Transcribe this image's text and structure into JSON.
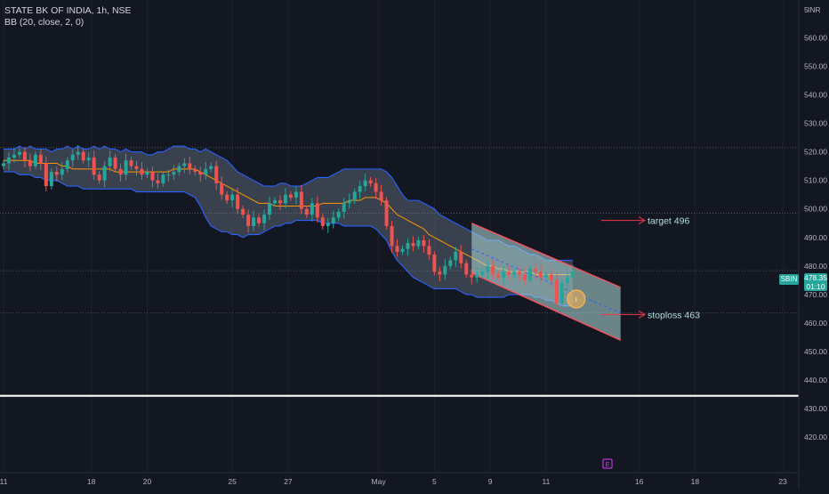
{
  "header": {
    "title": "STATE BK OF INDIA, 1h, NSE",
    "indicator": "BB (20, close, 2, 0)"
  },
  "currency": "INR",
  "last_price": {
    "symbol": "SBIN",
    "price": "478.35",
    "countdown": "01:10",
    "value": 478.35
  },
  "annotations": {
    "target_label": "target 496",
    "stoploss_label": "stoploss 463",
    "earnings_marker": "E",
    "point_marker": "I"
  },
  "colors": {
    "background": "#131722",
    "up": "#26a69a",
    "down": "#ef5350",
    "bands": "#2962ff",
    "basis": "#ff9800",
    "channel": "#b2dfdb",
    "target_arrow": "#f23645"
  },
  "chart_data": {
    "type": "candlestick",
    "title": "STATE BK OF INDIA, 1h, NSE",
    "indicator": "Bollinger Bands (20, close, 2, 0)",
    "ylim": [
      411,
      567
    ],
    "y_ticks": [
      420,
      430,
      440,
      450,
      460,
      470,
      480,
      490,
      500,
      510,
      520,
      530,
      540,
      550,
      560
    ],
    "x_ticks": [
      "11",
      "18",
      "20",
      "25",
      "27",
      "May",
      "5",
      "9",
      "11",
      "16",
      "18",
      "23"
    ],
    "close": [
      516,
      518,
      519,
      520,
      517,
      515,
      519,
      516,
      508,
      513,
      512,
      514,
      517,
      519,
      520,
      517,
      518,
      512,
      510,
      515,
      518,
      514,
      512,
      517,
      515,
      514,
      512,
      513,
      510,
      509,
      512,
      512,
      513,
      515,
      516,
      514,
      513,
      512,
      514,
      515,
      509,
      505,
      503,
      505,
      500,
      498,
      494,
      497,
      495,
      498,
      502,
      503,
      502,
      505,
      504,
      506,
      500,
      498,
      502,
      497,
      494,
      495,
      497,
      499,
      502,
      503,
      506,
      508,
      510,
      509,
      506,
      503,
      494,
      487,
      485,
      486,
      488,
      487,
      489,
      487,
      484,
      478,
      477,
      480,
      482,
      485,
      481,
      477,
      476,
      477,
      478,
      480,
      477,
      476,
      478,
      477,
      478,
      477,
      475,
      479,
      478,
      476,
      477,
      475,
      467,
      474,
      476,
      478
    ],
    "bb_upper": [
      521,
      521,
      521,
      522,
      521,
      522,
      521,
      521,
      521,
      520,
      521,
      521,
      522,
      521,
      522,
      521,
      521,
      522,
      521,
      522,
      521,
      521,
      520,
      521,
      520,
      520,
      520,
      519,
      519,
      520,
      520,
      521,
      522,
      522,
      522,
      521,
      521,
      520,
      521,
      520,
      519,
      518,
      517,
      515,
      513,
      512,
      511,
      510,
      509,
      508,
      508,
      508,
      509,
      509,
      508,
      508,
      508,
      509,
      510,
      511,
      511,
      511,
      512,
      513,
      514,
      514,
      514,
      514,
      514,
      514,
      514,
      514,
      513,
      511,
      508,
      505,
      503,
      503,
      503,
      502,
      501,
      500,
      498,
      497,
      496,
      495,
      494,
      493,
      492,
      491,
      490,
      489,
      489,
      489,
      488,
      487,
      487,
      486,
      485,
      484,
      484,
      483,
      482,
      482,
      482,
      482,
      482,
      482
    ],
    "bb_basis": [
      517,
      517,
      517,
      517,
      517,
      517,
      516,
      516,
      516,
      516,
      516,
      515,
      515,
      514,
      514,
      514,
      514,
      514,
      514,
      514,
      514,
      513,
      513,
      513,
      513,
      513,
      513,
      513,
      513,
      513,
      513,
      513,
      514,
      514,
      514,
      514,
      514,
      513,
      512,
      511,
      510,
      509,
      508,
      507,
      506,
      505,
      504,
      503,
      502,
      502,
      502,
      501,
      501,
      501,
      501,
      501,
      501,
      501,
      501,
      501,
      502,
      502,
      502,
      502,
      502,
      503,
      503,
      503,
      504,
      504,
      504,
      503,
      502,
      500,
      498,
      497,
      496,
      495,
      494,
      493,
      491,
      490,
      489,
      488,
      487,
      486,
      485,
      484,
      483,
      482,
      481,
      480,
      480,
      479,
      479,
      478,
      478,
      478,
      478,
      478,
      477,
      477,
      477,
      477,
      477,
      477,
      477,
      477
    ],
    "bb_lower": [
      513,
      513,
      513,
      512,
      512,
      512,
      511,
      511,
      510,
      510,
      510,
      509,
      508,
      508,
      508,
      507,
      507,
      507,
      507,
      507,
      507,
      507,
      507,
      507,
      507,
      506,
      506,
      506,
      506,
      506,
      506,
      506,
      506,
      506,
      506,
      505,
      504,
      501,
      497,
      494,
      493,
      492,
      492,
      491,
      491,
      490,
      491,
      491,
      491,
      492,
      493,
      494,
      494,
      495,
      495,
      496,
      496,
      496,
      496,
      496,
      495,
      495,
      495,
      495,
      494,
      494,
      494,
      494,
      494,
      494,
      493,
      491,
      489,
      485,
      482,
      480,
      478,
      476,
      475,
      474,
      473,
      472,
      472,
      472,
      472,
      472,
      471,
      470,
      470,
      469,
      469,
      469,
      469,
      469,
      469,
      470,
      470,
      470,
      470,
      470,
      469,
      469,
      468,
      468,
      467,
      466,
      466,
      466
    ],
    "horizontal_lines": [
      {
        "value": 521.5,
        "style": "dotted"
      },
      {
        "value": 498.5,
        "style": "dotted"
      },
      {
        "value": 478.35,
        "style": "dotted"
      },
      {
        "value": 463.5,
        "style": "dotted"
      },
      {
        "value": 434.5,
        "style": "solid",
        "color": "#ffffff"
      }
    ],
    "channel": {
      "start_index": 88,
      "end_index": 116,
      "upper": [
        495,
        472.5
      ],
      "lower": [
        477.5,
        454
      ],
      "mid": [
        486,
        463.5
      ]
    },
    "target": 496,
    "stoploss": 463
  }
}
